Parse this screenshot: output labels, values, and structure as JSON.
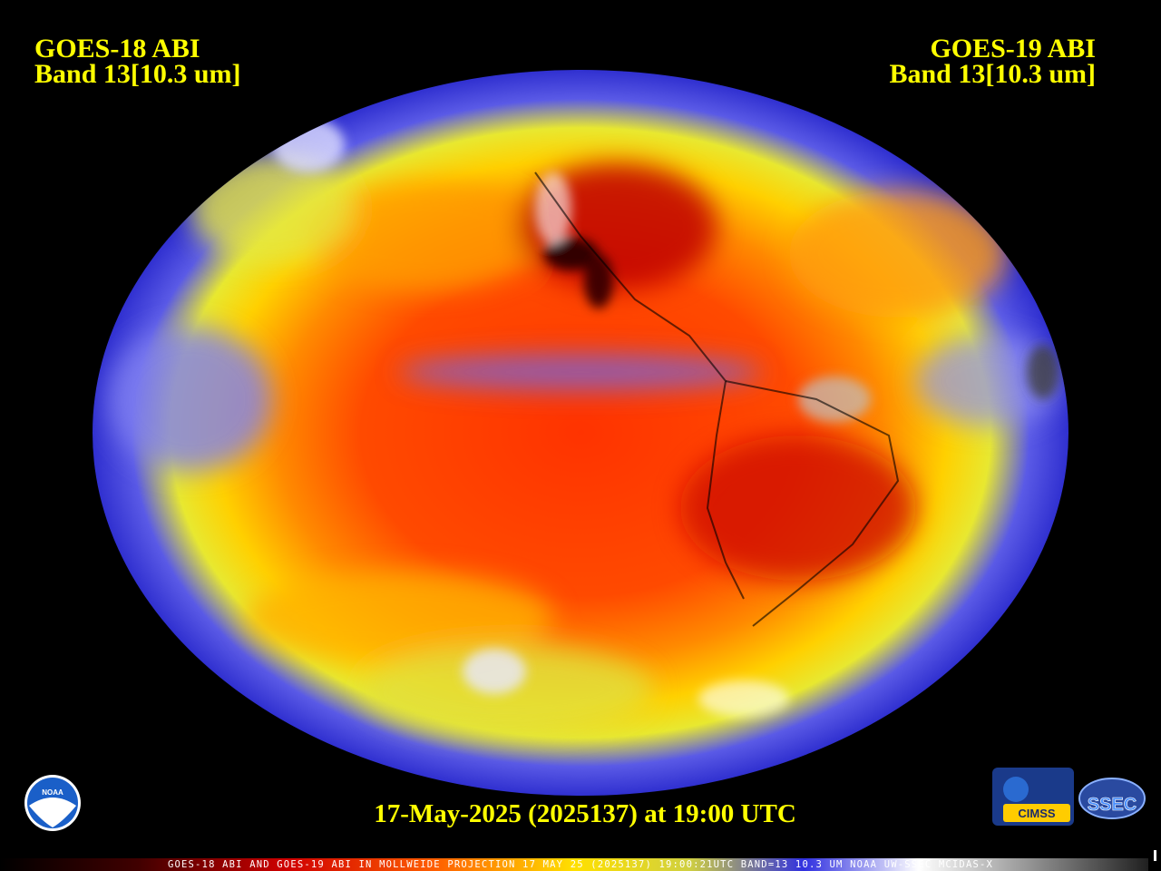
{
  "header": {
    "left": {
      "title": "GOES-18 ABI",
      "band": "Band 13[10.3 um]"
    },
    "right": {
      "title": "GOES-19 ABI",
      "band": "Band 13[10.3 um]"
    }
  },
  "timestamp": "17-May-2025 (2025137) at 19:00 UTC",
  "footer": "GOES-18 ABI AND GOES-19 ABI IN MOLLWEIDE PROJECTION 17 MAY 25 (2025137) 19:00:21UTC BAND=13 10.3 UM NOAA UW-SSEC MCIDAS-X",
  "logos": {
    "noaa": "NOAA",
    "cimss": "CIMSS",
    "ssec": "SSEC"
  }
}
